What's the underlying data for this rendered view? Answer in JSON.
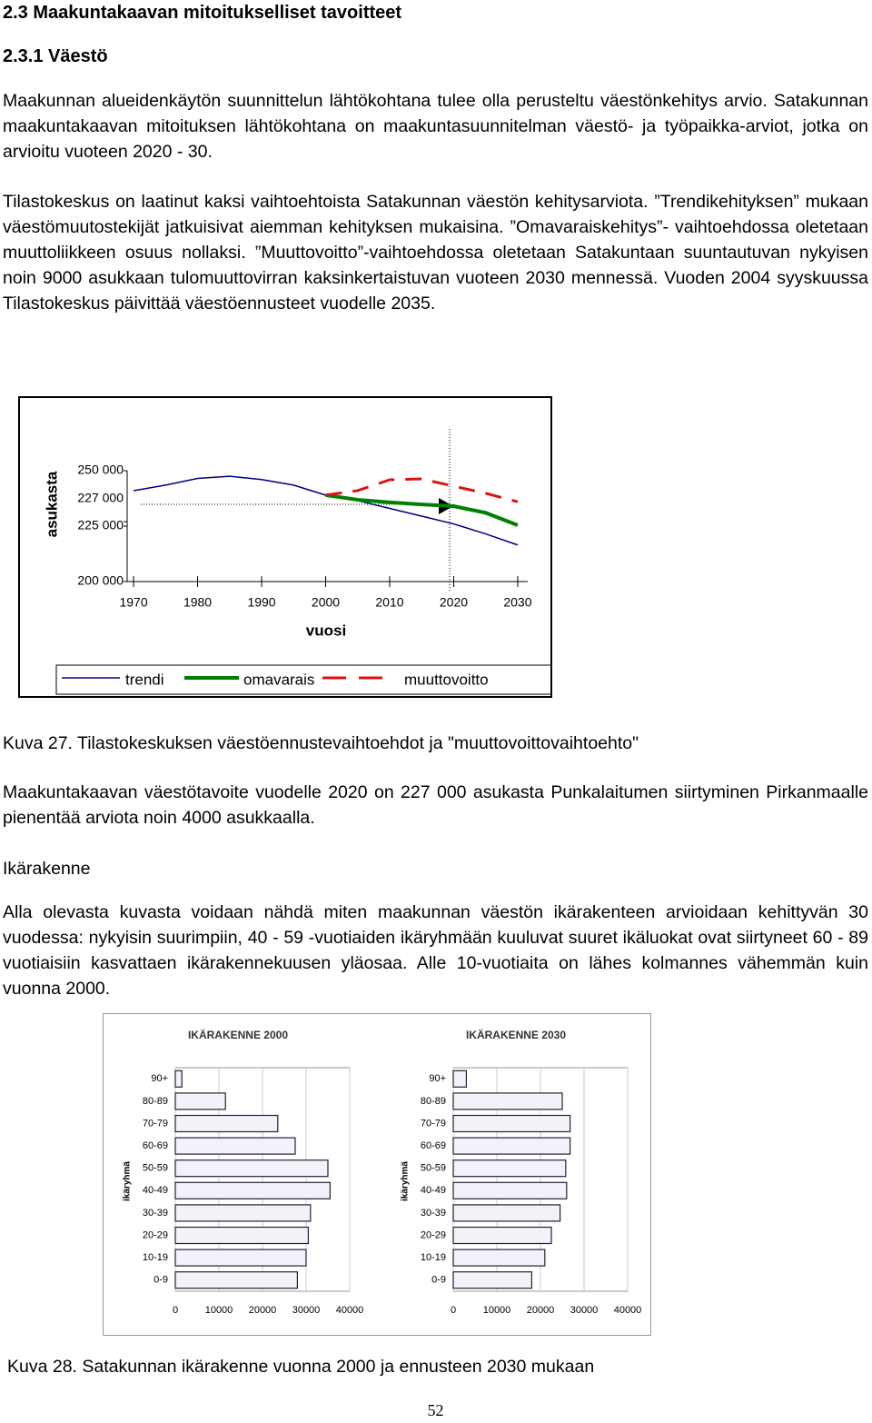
{
  "heading": "2.3 Maakuntakaavan mitoitukselliset tavoitteet",
  "subheading": "2.3.1 Väestö",
  "paragraph_1": "Maakunnan alueidenkäytön suunnittelun lähtökohtana tulee olla perusteltu väestönkehitys arvio. Satakunnan maakuntakaavan mitoituksen lähtökohtana on maakuntasuunnitelman väestö- ja työpaikka-arviot, jotka on arvioitu vuoteen 2020 - 30.",
  "paragraph_2": "Tilastokeskus on laatinut kaksi vaihtoehtoista Satakunnan väestön kehitysarviota. ”Trendikehityksen” mukaan väestömuutostekijät jatkuisivat aiemman kehityksen mukaisina. ”Omavaraiskehitys”- vaihtoehdossa oletetaan muuttoliikkeen osuus nollaksi. ”Muuttovoitto”-vaihtoehdossa oletetaan Satakuntaan suuntautuvan nykyisen noin 9000 asukkaan tulomuuttovirran kaksinkertaistuvan vuoteen 2030 mennessä. Vuoden 2004 syyskuussa Tilastokeskus päivittää väestöennusteet vuodelle 2035.",
  "chart_data": [
    {
      "type": "line",
      "ylabel": "asukasta",
      "xlabel": "vuosi",
      "x": [
        1970,
        1975,
        1980,
        1985,
        1990,
        1995,
        2000,
        2005,
        2010,
        2015,
        2020,
        2025,
        2030
      ],
      "xlim": [
        1969,
        2031
      ],
      "xticks": [
        1970,
        1980,
        1990,
        2000,
        2010,
        2020,
        2030
      ],
      "ylim": [
        200000,
        250000
      ],
      "yticks": [
        {
          "value": 200000,
          "label": "200 000"
        },
        {
          "value": 225000,
          "label": "225 000"
        },
        {
          "value": 227000,
          "label": "227 000"
        },
        {
          "value": 250000,
          "label": "250 000"
        }
      ],
      "series": [
        {
          "name": "trendi",
          "color": "#000080",
          "values": [
            241000,
            243500,
            246500,
            247500,
            246000,
            243500,
            239000,
            236500,
            233000,
            229500,
            226000,
            221500,
            216500
          ]
        },
        {
          "name": "omavarais",
          "color": "#008000",
          "values": [
            null,
            null,
            null,
            null,
            null,
            null,
            239000,
            236900,
            235700,
            234800,
            234000,
            231000,
            225400
          ]
        },
        {
          "name": "muuttovoitto",
          "color": "#e01010",
          "dashed": true,
          "values": [
            null,
            null,
            null,
            null,
            null,
            null,
            239000,
            241000,
            245900,
            246300,
            243000,
            239800,
            236000
          ]
        }
      ]
    },
    {
      "type": "bar",
      "orientation": "horizontal",
      "title": "IKÄRAKENNE 2000",
      "ylabel": "ikäryhmä",
      "categories": [
        "0-9",
        "10-19",
        "20-29",
        "30-39",
        "40-49",
        "50-59",
        "60-69",
        "70-79",
        "80-89",
        "90+"
      ],
      "values": [
        28000,
        30000,
        30500,
        31000,
        35500,
        35000,
        27500,
        23500,
        11500,
        1500
      ],
      "color": "#f2f2fa",
      "xlim": [
        0,
        40000
      ],
      "xticks": [
        0,
        10000,
        20000,
        30000,
        40000
      ]
    },
    {
      "type": "bar",
      "orientation": "horizontal",
      "title": "IKÄRAKENNE 2030",
      "ylabel": "ikäryhmä",
      "categories": [
        "0-9",
        "10-19",
        "20-29",
        "30-39",
        "40-49",
        "50-59",
        "60-69",
        "70-79",
        "80-89",
        "90+"
      ],
      "values": [
        18000,
        21000,
        22500,
        24500,
        26000,
        25800,
        26800,
        26800,
        25000,
        3000
      ],
      "color": "#f2f2fa",
      "xlim": [
        0,
        40000
      ],
      "xticks": [
        0,
        10000,
        20000,
        30000,
        40000
      ]
    }
  ],
  "caption_1": "Kuva 27.  Tilastokeskuksen väestöennustevaihtoehdot ja \"muuttovoittovaihtoehto\"",
  "paragraph_3": "Maakuntakaavan väestötavoite vuodelle 2020 on 227 000 asukasta Punkalaitumen siirtyminen Pirkanmaalle pienentää arviota noin 4000 asukkaalla.",
  "subheading_2": "Ikärakenne",
  "paragraph_4": "Alla olevasta kuvasta voidaan nähdä miten maakunnan väestön ikärakenteen arvioidaan kehittyvän 30 vuodessa: nykyisin suurimpiin, 40 - 59 -vuotiaiden ikäryhmään kuuluvat suuret ikäluokat ovat siirtyneet 60 - 89 vuotiaisiin kasvattaen ikärakennekuusen yläosaa. Alle 10-vuotiaita on lähes kolmannes vähemmän kuin vuonna 2000.",
  "caption_2": "Kuva 28.  Satakunnan ikärakenne vuonna  2000 ja ennusteen 2030 mukaan",
  "page_number": "52"
}
